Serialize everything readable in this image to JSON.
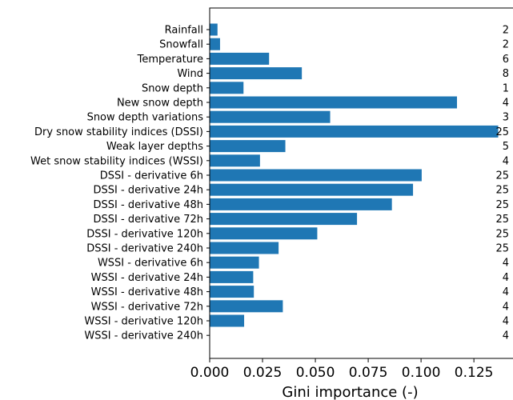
{
  "chart_data": {
    "type": "bar",
    "orientation": "horizontal",
    "xlabel": "Gini importance (-)",
    "xlim": [
      0,
      0.1435
    ],
    "xticks": [
      "0.000",
      "0.025",
      "0.050",
      "0.075",
      "0.100",
      "0.125"
    ],
    "bar_color": "#1f77b4",
    "categories": [
      "Rainfall",
      "Snowfall",
      "Temperature",
      "Wind",
      "Snow depth",
      "New snow depth",
      "Snow depth variations",
      "Dry snow stability indices (DSSI)",
      "Weak layer depths",
      "Wet snow stability indices (WSSI)",
      "DSSI - derivative 6h",
      "DSSI - derivative 24h",
      "DSSI - derivative 48h",
      "DSSI - derivative 72h",
      "DSSI - derivative 120h",
      "DSSI - derivative 240h",
      "WSSI - derivative 6h",
      "WSSI - derivative 24h",
      "WSSI - derivative 48h",
      "WSSI - derivative 72h",
      "WSSI - derivative 120h",
      "WSSI - derivative 240h"
    ],
    "values": [
      0.0037,
      0.0049,
      0.0281,
      0.0436,
      0.016,
      0.117,
      0.057,
      0.1365,
      0.0358,
      0.0238,
      0.1003,
      0.0962,
      0.0862,
      0.0697,
      0.0509,
      0.0326,
      0.0233,
      0.0206,
      0.0209,
      0.0346,
      0.0163,
      0.0
    ],
    "counts": [
      "2",
      "2",
      "6",
      "8",
      "1",
      "4",
      "3",
      "25",
      "5",
      "4",
      "25",
      "25",
      "25",
      "25",
      "25",
      "25",
      "4",
      "4",
      "4",
      "4",
      "4",
      "4"
    ]
  }
}
